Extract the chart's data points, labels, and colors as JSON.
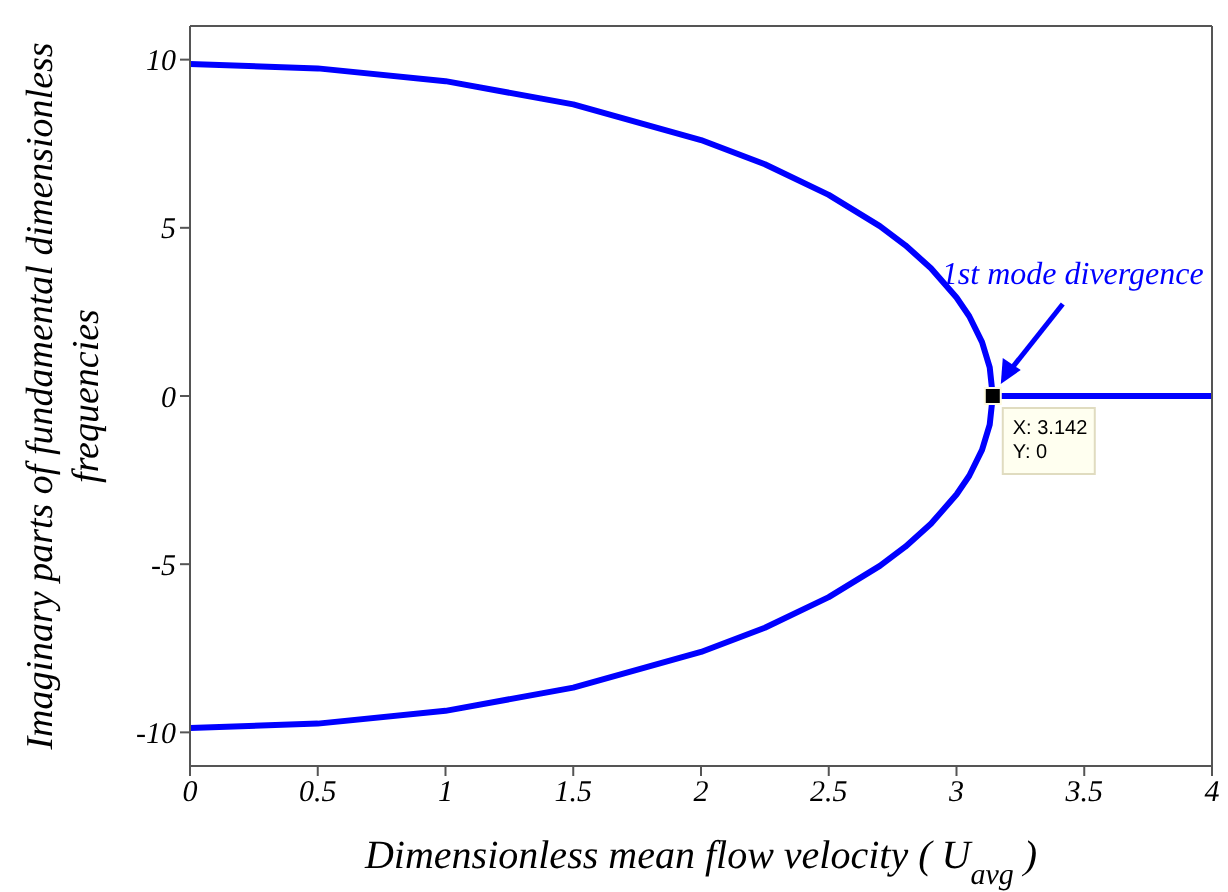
{
  "chart_data": {
    "type": "line",
    "xlabel": "Dimensionless mean flow velocity ( U$_{avg}$ )",
    "ylabel": "Imaginary parts of fundamental dimensionless frequencies",
    "xlim": [
      0,
      4
    ],
    "ylim": [
      -11,
      11
    ],
    "xticks": [
      0,
      0.5,
      1,
      1.5,
      2,
      2.5,
      3,
      3.5,
      4
    ],
    "yticks": [
      -10,
      -5,
      0,
      5,
      10
    ],
    "marker": "none",
    "line_style": "solid",
    "series": [
      {
        "color": "#0000ff",
        "x": [
          0,
          0.5,
          1,
          1.5,
          2,
          2.25,
          2.5,
          2.7,
          2.8,
          2.9,
          3,
          3.05,
          3.1,
          3.13,
          3.142
        ],
        "values": [
          9.87,
          9.74,
          9.36,
          8.67,
          7.61,
          6.89,
          5.98,
          5.05,
          4.48,
          3.8,
          2.93,
          2.37,
          1.6,
          0.85,
          0
        ]
      },
      {
        "color": "#0000ff",
        "x": [
          0,
          0.5,
          1,
          1.5,
          2,
          2.25,
          2.5,
          2.7,
          2.8,
          2.9,
          3,
          3.05,
          3.1,
          3.13,
          3.142
        ],
        "values": [
          -9.87,
          -9.74,
          -9.36,
          -8.67,
          -7.61,
          -6.89,
          -5.98,
          -5.05,
          -4.48,
          -3.8,
          -2.93,
          -2.37,
          -1.6,
          -0.85,
          0
        ]
      },
      {
        "color": "#0000ff",
        "x": [
          3.142,
          4
        ],
        "values": [
          0,
          0
        ]
      },
      {
        "type": "scatter",
        "marker": "square",
        "color": "#000000",
        "x": [
          3.142
        ],
        "values": [
          0
        ]
      }
    ],
    "annotations": [
      "1st mode divergence",
      {
        "text": "X: 3.142",
        "x": 3.142,
        "y": 0
      },
      {
        "text": "Y: 0",
        "x": 3.142,
        "y": 0
      }
    ]
  }
}
